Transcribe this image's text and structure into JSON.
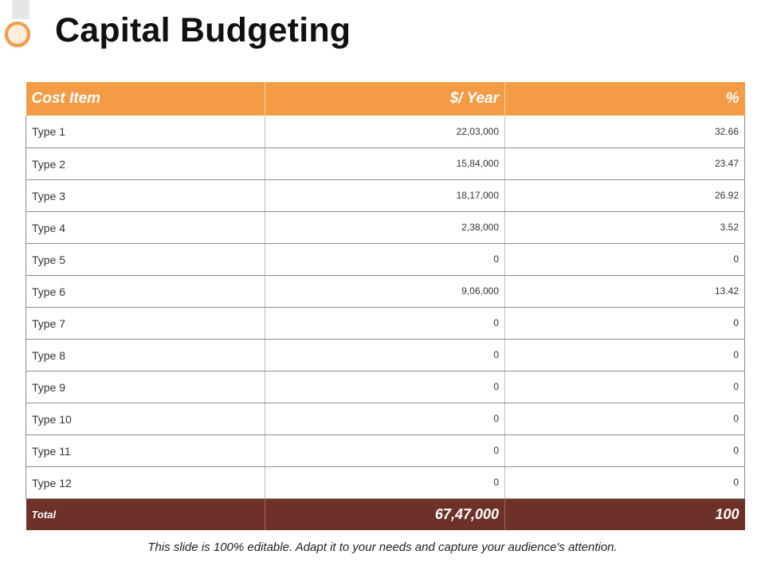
{
  "title": "Capital Budgeting",
  "table": {
    "headers": [
      "Cost Item",
      "$/ Year",
      "%"
    ],
    "rows": [
      {
        "item": "Type 1",
        "amount": "22,03,000",
        "percent": "32.66"
      },
      {
        "item": "Type 2",
        "amount": "15,84,000",
        "percent": "23.47"
      },
      {
        "item": "Type 3",
        "amount": "18,17,000",
        "percent": "26.92"
      },
      {
        "item": "Type 4",
        "amount": "2,38,000",
        "percent": "3.52"
      },
      {
        "item": "Type 5",
        "amount": "0",
        "percent": "0"
      },
      {
        "item": "Type 6",
        "amount": "9,06,000",
        "percent": "13.42"
      },
      {
        "item": "Type 7",
        "amount": "0",
        "percent": "0"
      },
      {
        "item": "Type 8",
        "amount": "0",
        "percent": "0"
      },
      {
        "item": "Type 9",
        "amount": "0",
        "percent": "0"
      },
      {
        "item": "Type 10",
        "amount": "0",
        "percent": "0"
      },
      {
        "item": "Type 11",
        "amount": "0",
        "percent": "0"
      },
      {
        "item": "Type 12",
        "amount": "0",
        "percent": "0"
      }
    ],
    "total": {
      "label": "Total",
      "amount": "67,47,000",
      "percent": "100"
    }
  },
  "footer": "This slide is 100% editable. Adapt it to your needs and capture your audience's attention.",
  "colors": {
    "header_bg": "#f39b45",
    "total_bg": "#6e3128",
    "accent_ring": "#f39b45"
  }
}
